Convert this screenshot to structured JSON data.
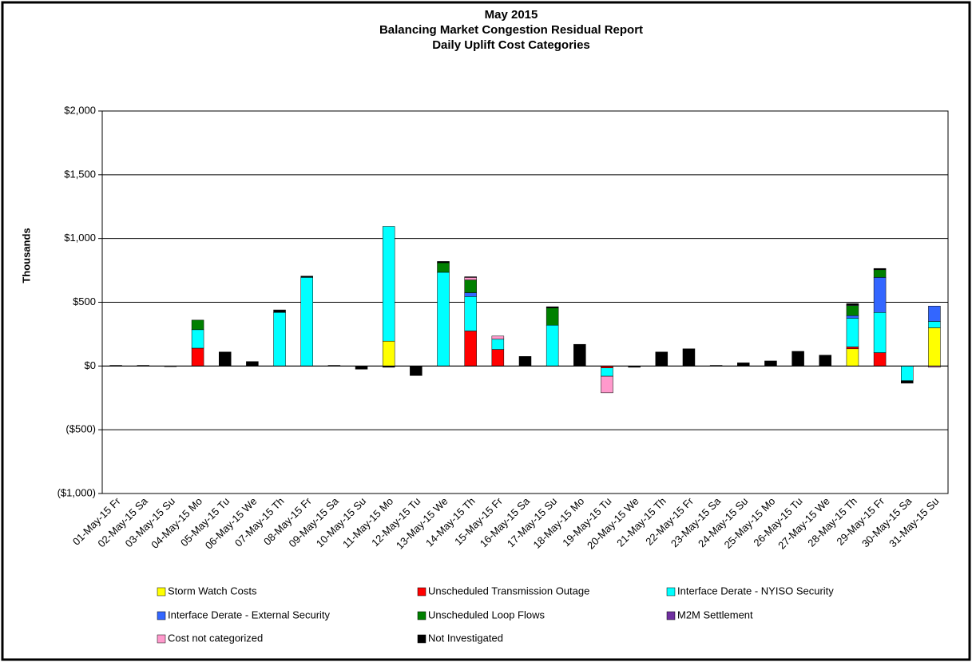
{
  "chart_data": {
    "type": "stacked_bar",
    "title": [
      "May 2015",
      "Balancing Market Congestion Residual Report",
      "Daily Uplift Cost Categories"
    ],
    "y_label": "Thousands",
    "categories": [
      "01-May-15 Fr",
      "02-May-15 Sa",
      "03-May-15 Su",
      "04-May-15 Mo",
      "05-May-15 Tu",
      "06-May-15 We",
      "07-May-15 Th",
      "08-May-15 Fr",
      "09-May-15 Sa",
      "10-May-15 Su",
      "11-May-15 Mo",
      "12-May-15 Tu",
      "13-May-15 We",
      "14-May-15 Th",
      "15-May-15 Fr",
      "16-May-15 Sa",
      "17-May-15 Su",
      "18-May-15 Mo",
      "19-May-15 Tu",
      "20-May-15 We",
      "21-May-15 Th",
      "22-May-15 Fr",
      "23-May-15 Sa",
      "24-May-15 Su",
      "25-May-15 Mo",
      "26-May-15 Tu",
      "27-May-15 We",
      "28-May-15 Th",
      "29-May-15 Fr",
      "30-May-15 Sa",
      "31-May-15 Su"
    ],
    "series": [
      {
        "name": "Storm Watch Costs",
        "color": "#ffff00",
        "values": [
          0,
          0,
          0,
          0,
          0,
          0,
          0,
          0,
          0,
          0,
          195,
          0,
          0,
          0,
          0,
          0,
          0,
          0,
          0,
          0,
          0,
          0,
          0,
          0,
          0,
          0,
          0,
          135,
          0,
          0,
          300
        ]
      },
      {
        "name": "Unscheduled Transmission Outage",
        "color": "#ff0000",
        "values": [
          0,
          0,
          0,
          140,
          0,
          0,
          0,
          0,
          0,
          0,
          0,
          0,
          0,
          275,
          130,
          0,
          0,
          0,
          -15,
          0,
          0,
          0,
          0,
          0,
          0,
          0,
          0,
          15,
          105,
          0,
          0
        ]
      },
      {
        "name": "Interface Derate - NYISO Security",
        "color": "#00ffff",
        "values": [
          0,
          0,
          0,
          145,
          0,
          0,
          420,
          695,
          0,
          0,
          900,
          0,
          735,
          270,
          80,
          0,
          320,
          0,
          -65,
          0,
          0,
          0,
          0,
          0,
          0,
          0,
          0,
          225,
          315,
          -115,
          50
        ]
      },
      {
        "name": "Interface Derate - External Security",
        "color": "#3366ff",
        "values": [
          0,
          0,
          0,
          0,
          0,
          0,
          0,
          0,
          0,
          0,
          0,
          0,
          0,
          30,
          0,
          0,
          0,
          0,
          0,
          0,
          0,
          0,
          0,
          0,
          0,
          0,
          0,
          20,
          275,
          0,
          120
        ]
      },
      {
        "name": "Unscheduled Loop Flows",
        "color": "#008000",
        "values": [
          0,
          0,
          0,
          75,
          0,
          0,
          0,
          0,
          0,
          0,
          0,
          0,
          75,
          100,
          0,
          0,
          135,
          0,
          0,
          0,
          0,
          0,
          0,
          0,
          0,
          0,
          0,
          80,
          60,
          0,
          0
        ]
      },
      {
        "name": "M2M Settlement",
        "color": "#7030a0",
        "values": [
          0,
          0,
          0,
          0,
          0,
          0,
          0,
          0,
          0,
          0,
          0,
          0,
          0,
          0,
          0,
          0,
          0,
          0,
          0,
          0,
          0,
          0,
          0,
          0,
          0,
          0,
          0,
          5,
          0,
          0,
          0
        ]
      },
      {
        "name": "Cost not categorized",
        "color": "#ff99cc",
        "values": [
          0,
          0,
          0,
          0,
          0,
          0,
          0,
          0,
          0,
          0,
          0,
          0,
          0,
          20,
          25,
          0,
          0,
          0,
          -130,
          0,
          0,
          0,
          0,
          0,
          0,
          0,
          0,
          0,
          0,
          0,
          -10
        ]
      },
      {
        "name": "Not Investigated",
        "color": "#000000",
        "values": [
          5,
          5,
          -5,
          0,
          110,
          35,
          20,
          10,
          5,
          -25,
          -10,
          -75,
          10,
          5,
          0,
          75,
          10,
          170,
          0,
          -10,
          110,
          135,
          5,
          25,
          40,
          115,
          85,
          10,
          10,
          -20,
          0
        ]
      }
    ],
    "ylim": [
      -1000,
      2000
    ],
    "yticks": [
      {
        "value": -1000,
        "label": "($1,000)"
      },
      {
        "value": -500,
        "label": "($500)"
      },
      {
        "value": 0,
        "label": "$0"
      },
      {
        "value": 500,
        "label": "$500"
      },
      {
        "value": 1000,
        "label": "$1,000"
      },
      {
        "value": 1500,
        "label": "$1,500"
      },
      {
        "value": 2000,
        "label": "$2,000"
      }
    ],
    "negative_tick_color": "#ff0000",
    "grid": true
  }
}
